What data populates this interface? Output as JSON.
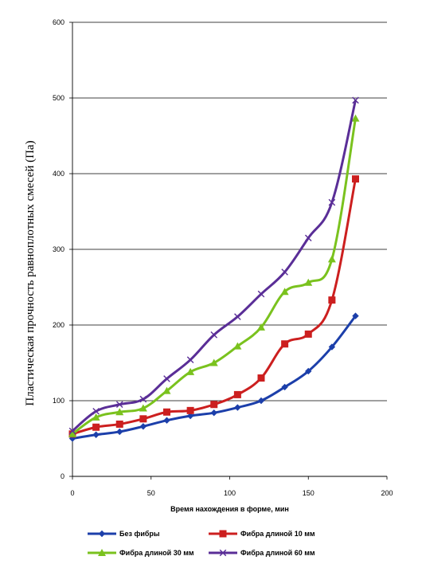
{
  "chart_data": {
    "type": "line",
    "title": "",
    "xlabel": "Время нахождения в форме, мин",
    "ylabel": "Пластическая прочность равноплотных смесей (Па)",
    "xlim": [
      0,
      200
    ],
    "ylim": [
      0,
      600
    ],
    "x_ticks": [
      0,
      50,
      100,
      150,
      200
    ],
    "y_ticks": [
      0,
      100,
      200,
      300,
      400,
      500,
      600
    ],
    "grid": "horizontal",
    "legend_position": "bottom",
    "series": [
      {
        "name": "Без фибры",
        "color": "#1c3faa",
        "marker": "diamond",
        "x": [
          0,
          15,
          30,
          45,
          60,
          75,
          90,
          105,
          120,
          135,
          150,
          165,
          180
        ],
        "y": [
          50,
          55,
          59,
          66,
          74,
          80,
          84,
          91,
          100,
          118,
          139,
          171,
          212
        ]
      },
      {
        "name": "Фибра длиной 10 мм",
        "color": "#cc1f1f",
        "marker": "square",
        "x": [
          0,
          15,
          30,
          45,
          60,
          75,
          90,
          105,
          120,
          135,
          150,
          165,
          180
        ],
        "y": [
          56,
          65,
          69,
          76,
          85,
          87,
          95,
          108,
          130,
          175,
          188,
          233,
          393
        ]
      },
      {
        "name": "Фибра длиной 30 мм",
        "color": "#7ac21e",
        "marker": "triangle",
        "x": [
          0,
          15,
          30,
          45,
          60,
          75,
          90,
          105,
          120,
          135,
          150,
          165,
          180
        ],
        "y": [
          56,
          78,
          85,
          90,
          113,
          138,
          150,
          172,
          197,
          244,
          256,
          287,
          473
        ]
      },
      {
        "name": "Фибра длиной 60 мм",
        "color": "#5a2e97",
        "marker": "x",
        "x": [
          0,
          15,
          30,
          45,
          60,
          75,
          90,
          105,
          120,
          135,
          150,
          165,
          180
        ],
        "y": [
          60,
          86,
          95,
          102,
          129,
          154,
          187,
          211,
          241,
          270,
          315,
          362,
          497
        ]
      }
    ]
  }
}
